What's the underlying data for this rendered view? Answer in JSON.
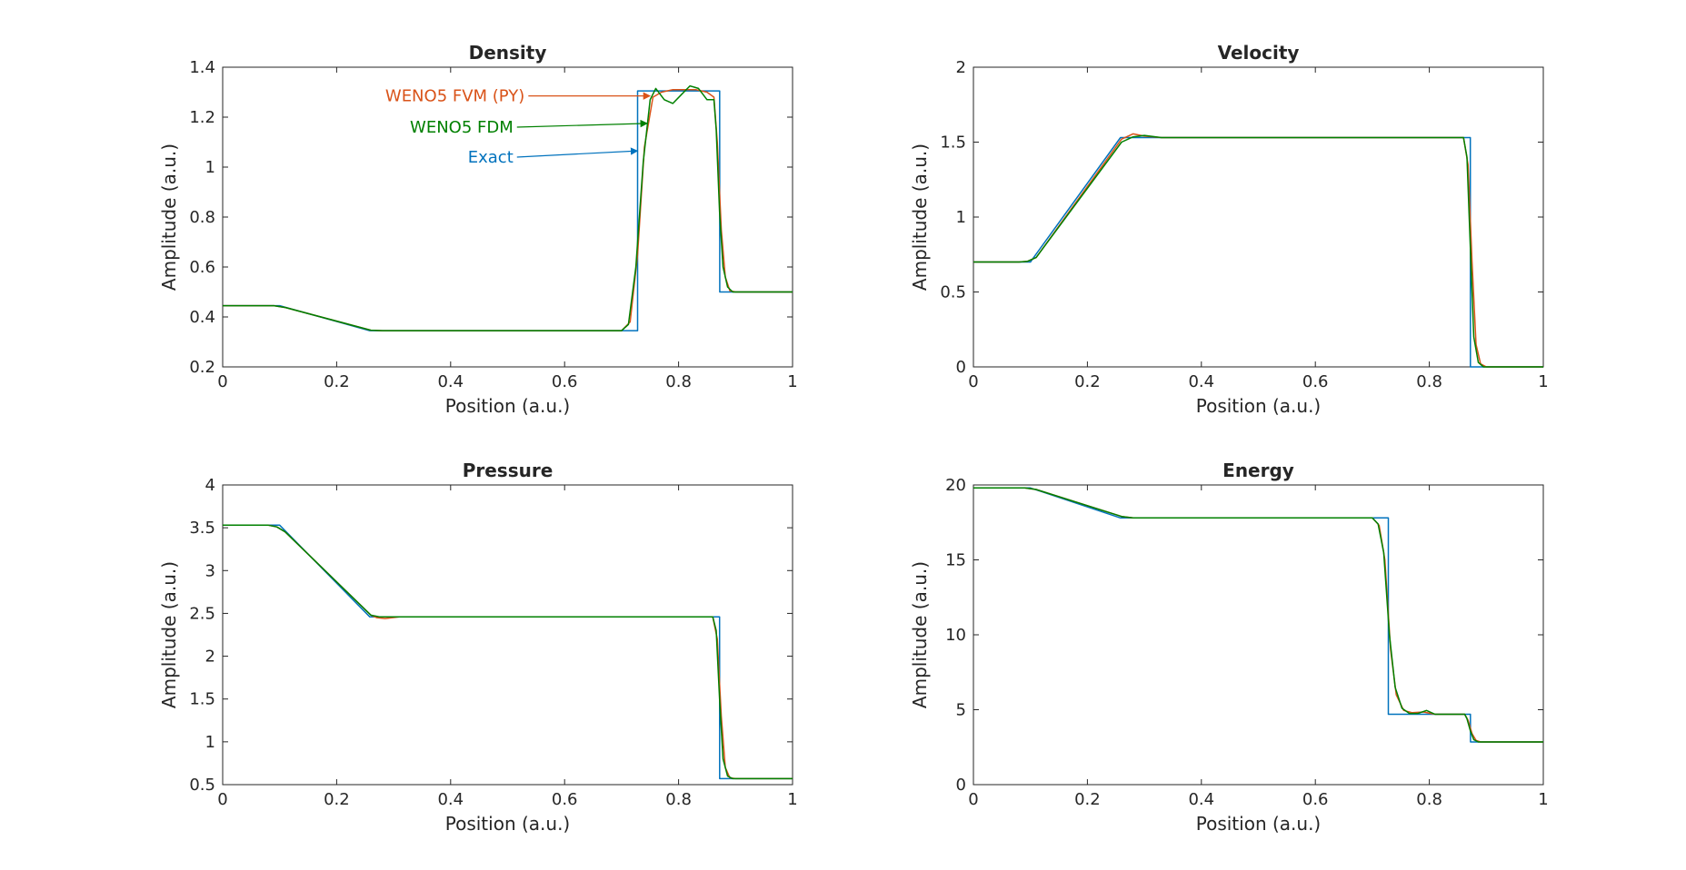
{
  "colors": {
    "exact": "#0072BD",
    "fvm": "#D95319",
    "fdm": "#008000",
    "axis": "#262626"
  },
  "chart_data": [
    {
      "type": "line",
      "title": "Density",
      "xlabel": "Position (a.u.)",
      "ylabel": "Amplitude (a.u.)",
      "xlim": [
        0,
        1
      ],
      "ylim": [
        0.2,
        1.4
      ],
      "xticks": [
        "0",
        "0.2",
        "0.4",
        "0.6",
        "0.8",
        "1"
      ],
      "yticks": [
        "0.2",
        "0.4",
        "0.6",
        "0.8",
        "1",
        "1.2",
        "1.4"
      ],
      "series": [
        {
          "name": "Exact",
          "x": [
            0,
            0.1,
            0.258,
            0.728,
            0.7281,
            0.8721,
            0.8722,
            1
          ],
          "y": [
            0.445,
            0.445,
            0.345,
            0.345,
            1.305,
            1.305,
            0.5,
            0.5
          ]
        },
        {
          "name": "WENO5 FVM (PY)",
          "x": [
            0,
            0.09,
            0.11,
            0.26,
            0.28,
            0.7,
            0.715,
            0.728,
            0.74,
            0.755,
            0.77,
            0.79,
            0.81,
            0.83,
            0.85,
            0.862,
            0.868,
            0.875,
            0.882,
            0.89,
            0.9,
            1
          ],
          "y": [
            0.445,
            0.445,
            0.438,
            0.347,
            0.345,
            0.345,
            0.38,
            0.65,
            1.08,
            1.28,
            1.3,
            1.31,
            1.31,
            1.31,
            1.3,
            1.28,
            1.1,
            0.75,
            0.56,
            0.505,
            0.5,
            0.5
          ]
        },
        {
          "name": "WENO5 FDM",
          "x": [
            0,
            0.09,
            0.11,
            0.26,
            0.28,
            0.7,
            0.712,
            0.725,
            0.738,
            0.75,
            0.76,
            0.775,
            0.79,
            0.805,
            0.82,
            0.835,
            0.85,
            0.862,
            0.866,
            0.872,
            0.878,
            0.886,
            0.895,
            1
          ],
          "y": [
            0.445,
            0.445,
            0.438,
            0.347,
            0.345,
            0.345,
            0.37,
            0.6,
            1.02,
            1.27,
            1.315,
            1.27,
            1.255,
            1.29,
            1.325,
            1.315,
            1.27,
            1.27,
            1.15,
            0.82,
            0.6,
            0.52,
            0.5,
            0.5
          ]
        }
      ],
      "annotations": [
        {
          "text": "WENO5 FVM (PY)",
          "series": "fvm",
          "from": [
            0.53,
            1.285
          ],
          "to": [
            0.75,
            1.285
          ]
        },
        {
          "text": "WENO5 FDM",
          "series": "fdm",
          "from": [
            0.51,
            1.16
          ],
          "to": [
            0.745,
            1.175
          ]
        },
        {
          "text": "Exact",
          "series": "exact",
          "from": [
            0.51,
            1.04
          ],
          "to": [
            0.728,
            1.065
          ]
        }
      ]
    },
    {
      "type": "line",
      "title": "Velocity",
      "xlabel": "Position (a.u.)",
      "ylabel": "Amplitude (a.u.)",
      "xlim": [
        0,
        1
      ],
      "ylim": [
        0,
        2
      ],
      "xticks": [
        "0",
        "0.2",
        "0.4",
        "0.6",
        "0.8",
        "1"
      ],
      "yticks": [
        "0",
        "0.5",
        "1",
        "1.5",
        "2"
      ],
      "series": [
        {
          "name": "Exact",
          "x": [
            0,
            0.1,
            0.258,
            0.872,
            0.8721,
            1
          ],
          "y": [
            0.7,
            0.7,
            1.53,
            1.53,
            0,
            0
          ]
        },
        {
          "name": "WENO5 FVM (PY)",
          "x": [
            0,
            0.08,
            0.095,
            0.11,
            0.26,
            0.28,
            0.3,
            0.33,
            0.86,
            0.868,
            0.875,
            0.882,
            0.89,
            0.9,
            1
          ],
          "y": [
            0.7,
            0.7,
            0.705,
            0.73,
            1.52,
            1.555,
            1.54,
            1.53,
            1.53,
            1.35,
            0.7,
            0.15,
            0.02,
            0,
            0
          ]
        },
        {
          "name": "WENO5 FDM",
          "x": [
            0,
            0.08,
            0.095,
            0.11,
            0.26,
            0.28,
            0.3,
            0.33,
            0.86,
            0.866,
            0.872,
            0.878,
            0.886,
            0.895,
            1
          ],
          "y": [
            0.7,
            0.7,
            0.705,
            0.73,
            1.5,
            1.535,
            1.545,
            1.53,
            1.53,
            1.4,
            0.8,
            0.2,
            0.03,
            0,
            0
          ]
        }
      ]
    },
    {
      "type": "line",
      "title": "Pressure",
      "xlabel": "Position (a.u.)",
      "ylabel": "Amplitude (a.u.)",
      "xlim": [
        0,
        1
      ],
      "ylim": [
        0.5,
        4
      ],
      "xticks": [
        "0",
        "0.2",
        "0.4",
        "0.6",
        "0.8",
        "1"
      ],
      "yticks": [
        "0.5",
        "1",
        "1.5",
        "2",
        "2.5",
        "3",
        "3.5",
        "4"
      ],
      "series": [
        {
          "name": "Exact",
          "x": [
            0,
            0.1,
            0.258,
            0.872,
            0.8721,
            1
          ],
          "y": [
            3.53,
            3.53,
            2.46,
            2.46,
            0.57,
            0.57
          ]
        },
        {
          "name": "WENO5 FVM (PY)",
          "x": [
            0,
            0.08,
            0.095,
            0.11,
            0.26,
            0.27,
            0.285,
            0.31,
            0.86,
            0.868,
            0.875,
            0.882,
            0.89,
            0.9,
            1
          ],
          "y": [
            3.53,
            3.53,
            3.51,
            3.45,
            2.48,
            2.45,
            2.44,
            2.46,
            2.46,
            2.2,
            1.3,
            0.7,
            0.58,
            0.57,
            0.57
          ]
        },
        {
          "name": "WENO5 FDM",
          "x": [
            0,
            0.08,
            0.095,
            0.11,
            0.26,
            0.275,
            0.3,
            0.86,
            0.866,
            0.872,
            0.878,
            0.886,
            0.895,
            1
          ],
          "y": [
            3.53,
            3.53,
            3.51,
            3.45,
            2.48,
            2.46,
            2.46,
            2.46,
            2.3,
            1.5,
            0.8,
            0.6,
            0.57,
            0.57
          ]
        }
      ]
    },
    {
      "type": "line",
      "title": "Energy",
      "xlabel": "Position (a.u.)",
      "ylabel": "Amplitude (a.u.)",
      "xlim": [
        0,
        1
      ],
      "ylim": [
        0,
        20
      ],
      "xticks": [
        "0",
        "0.2",
        "0.4",
        "0.6",
        "0.8",
        "1"
      ],
      "yticks": [
        "0",
        "5",
        "10",
        "15",
        "20"
      ],
      "series": [
        {
          "name": "Exact",
          "x": [
            0,
            0.1,
            0.258,
            0.728,
            0.7281,
            0.8721,
            0.8722,
            1
          ],
          "y": [
            19.8,
            19.8,
            17.8,
            17.8,
            4.7,
            4.7,
            2.85,
            2.85
          ]
        },
        {
          "name": "WENO5 FVM (PY)",
          "x": [
            0,
            0.09,
            0.11,
            0.26,
            0.28,
            0.7,
            0.712,
            0.722,
            0.732,
            0.742,
            0.755,
            0.77,
            0.79,
            0.81,
            0.83,
            0.862,
            0.868,
            0.875,
            0.882,
            0.89,
            1
          ],
          "y": [
            19.8,
            19.8,
            19.7,
            17.9,
            17.8,
            17.8,
            17.3,
            15,
            9,
            6,
            4.95,
            4.8,
            4.85,
            4.7,
            4.7,
            4.7,
            4.3,
            3.4,
            2.95,
            2.85,
            2.85
          ]
        },
        {
          "name": "WENO5 FDM",
          "x": [
            0,
            0.09,
            0.11,
            0.26,
            0.28,
            0.7,
            0.71,
            0.72,
            0.73,
            0.74,
            0.752,
            0.765,
            0.78,
            0.795,
            0.81,
            0.83,
            0.862,
            0.866,
            0.872,
            0.878,
            0.886,
            1
          ],
          "y": [
            19.8,
            19.8,
            19.7,
            17.9,
            17.8,
            17.8,
            17.4,
            15.5,
            10,
            6.5,
            5.1,
            4.75,
            4.75,
            4.95,
            4.7,
            4.7,
            4.7,
            4.4,
            3.6,
            3.0,
            2.85,
            2.85
          ]
        }
      ]
    }
  ]
}
